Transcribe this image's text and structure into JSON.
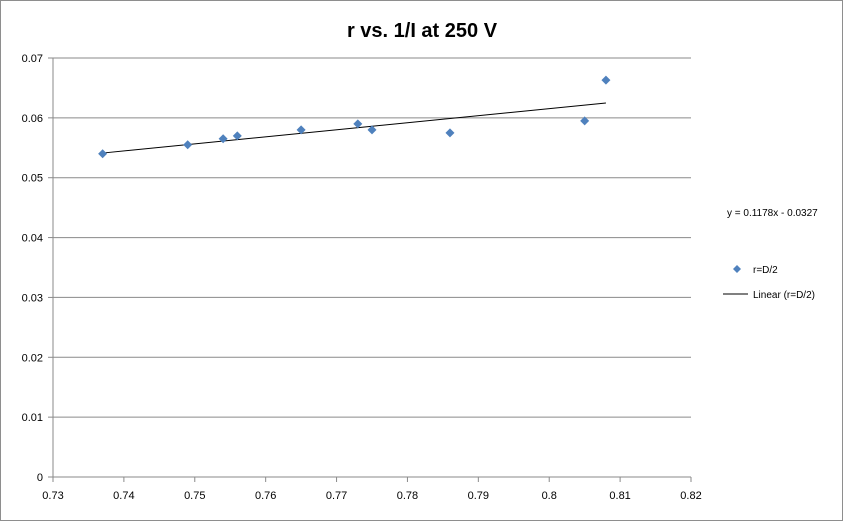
{
  "chart_data": {
    "type": "scatter",
    "title": "r vs. 1/I at 250 V",
    "xlabel": "",
    "ylabel": "",
    "xlim": [
      0.73,
      0.82
    ],
    "ylim": [
      0,
      0.07
    ],
    "x_ticks": [
      "0.73",
      "0.74",
      "0.75",
      "0.76",
      "0.77",
      "0.78",
      "0.79",
      "0.8",
      "0.81",
      "0.82"
    ],
    "y_ticks": [
      "0",
      "0.01",
      "0.02",
      "0.03",
      "0.04",
      "0.05",
      "0.06",
      "0.07"
    ],
    "grid": "horizontal",
    "series": [
      {
        "name": "r=D/2",
        "marker": "diamond",
        "color": "#4f81bd",
        "points": [
          {
            "x": 0.737,
            "y": 0.054
          },
          {
            "x": 0.749,
            "y": 0.0555
          },
          {
            "x": 0.754,
            "y": 0.0565
          },
          {
            "x": 0.756,
            "y": 0.057
          },
          {
            "x": 0.765,
            "y": 0.058
          },
          {
            "x": 0.773,
            "y": 0.059
          },
          {
            "x": 0.775,
            "y": 0.058
          },
          {
            "x": 0.786,
            "y": 0.0575
          },
          {
            "x": 0.805,
            "y": 0.0595
          },
          {
            "x": 0.808,
            "y": 0.0663
          }
        ]
      }
    ],
    "trendline": {
      "name": "Linear (r=D/2)",
      "color": "#000000",
      "slope": 0.1178,
      "intercept": -0.0327,
      "x_range": [
        0.737,
        0.808
      ],
      "equation": "y = 0.1178x - 0.0327"
    },
    "legend_position": "right"
  }
}
